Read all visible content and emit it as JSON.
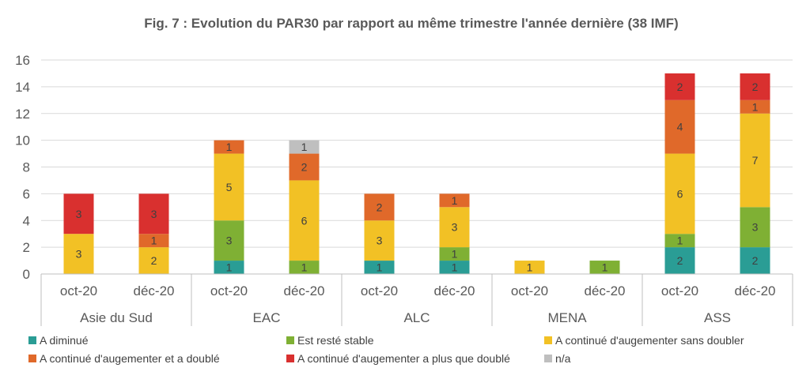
{
  "chart_data": {
    "type": "bar",
    "stacked": true,
    "title": "Fig. 7 : Evolution du PAR30 par rapport au même trimestre l'année dernière (38 IMF)",
    "xlabel": "",
    "ylabel": "",
    "ylim": [
      0,
      16
    ],
    "yticks": [
      "0",
      "2",
      "4",
      "6",
      "8",
      "10",
      "12",
      "14",
      "16"
    ],
    "grid": true,
    "legend_position": "bottom",
    "groups": [
      "Asie du Sud",
      "EAC",
      "ALC",
      "MENA",
      "ASS"
    ],
    "categories": [
      "oct-20",
      "déc-20",
      "oct-20",
      "déc-20",
      "oct-20",
      "déc-20",
      "oct-20",
      "déc-20",
      "oct-20",
      "déc-20"
    ],
    "series": [
      {
        "name": "A diminué",
        "color": "#2a9d95",
        "values": [
          0,
          0,
          1,
          0,
          1,
          1,
          0,
          0,
          2,
          2
        ]
      },
      {
        "name": "Est resté stable",
        "color": "#7fb034",
        "values": [
          0,
          0,
          3,
          1,
          0,
          1,
          0,
          1,
          1,
          3
        ]
      },
      {
        "name": "A continué d'augementer sans doubler",
        "color": "#f2c125",
        "values": [
          3,
          2,
          5,
          6,
          3,
          3,
          1,
          0,
          6,
          7
        ]
      },
      {
        "name": "A continué d'augementer et a doublé",
        "color": "#e0692a",
        "values": [
          0,
          1,
          1,
          2,
          2,
          1,
          0,
          0,
          4,
          1
        ]
      },
      {
        "name": "A continué d'augementer a plus que doublé",
        "color": "#d9302f",
        "values": [
          3,
          3,
          0,
          0,
          0,
          0,
          0,
          0,
          2,
          2
        ]
      },
      {
        "name": "n/a",
        "color": "#bfbfbf",
        "values": [
          0,
          0,
          0,
          1,
          0,
          0,
          0,
          0,
          0,
          0
        ]
      }
    ]
  }
}
